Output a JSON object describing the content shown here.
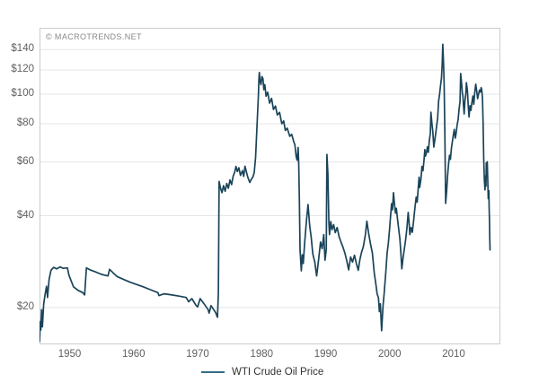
{
  "watermark": "© MACROTRENDS.NET",
  "colors": {
    "background": "#ffffff",
    "axis_label": "#606060",
    "watermark": "#888888",
    "legend_text": "#333333",
    "grid": "#e6e6e6",
    "plot_border": "#cccccc",
    "series_line": "#1a4459",
    "legend_swatch": "#336b87"
  },
  "chart_data": {
    "type": "line",
    "title": "",
    "legend_position": "bottom",
    "grid": {
      "horizontal": true,
      "vertical": false
    },
    "x_axis": {
      "scale": "linear",
      "range": [
        1945.3,
        2017.3
      ],
      "ticks": [
        {
          "v": 1950,
          "label": "1950"
        },
        {
          "v": 1960,
          "label": "1960"
        },
        {
          "v": 1970,
          "label": "1970"
        },
        {
          "v": 1980,
          "label": "1980"
        },
        {
          "v": 1990,
          "label": "1990"
        },
        {
          "v": 2000,
          "label": "2000"
        },
        {
          "v": 2010,
          "label": "2010"
        }
      ]
    },
    "y_axis": {
      "scale": "log",
      "range": [
        15.16,
        165
      ],
      "ticks": [
        {
          "v": 140,
          "label": "$140"
        },
        {
          "v": 120,
          "label": "$120"
        },
        {
          "v": 100,
          "label": "$100"
        },
        {
          "v": 80,
          "label": "$80"
        },
        {
          "v": 60,
          "label": "$60"
        },
        {
          "v": 40,
          "label": "$40"
        },
        {
          "v": 20,
          "label": "$20"
        }
      ]
    },
    "series": [
      {
        "name": "WTI Crude Oil Price",
        "color": "#1a4459",
        "points": [
          [
            1945.3,
            15.5
          ],
          [
            1945.42,
            18.0
          ],
          [
            1945.5,
            16.9
          ],
          [
            1945.62,
            19.7
          ],
          [
            1945.75,
            17.3
          ],
          [
            1945.95,
            20.5
          ],
          [
            1946.15,
            22.0
          ],
          [
            1946.4,
            23.5
          ],
          [
            1946.55,
            21.6
          ],
          [
            1946.8,
            24.8
          ],
          [
            1947.1,
            26.5
          ],
          [
            1947.5,
            27.1
          ],
          [
            1948.0,
            26.8
          ],
          [
            1948.5,
            27.2
          ],
          [
            1949.0,
            26.9
          ],
          [
            1949.65,
            27.0
          ],
          [
            1949.9,
            25.5
          ],
          [
            1950.3,
            24.3
          ],
          [
            1950.6,
            23.4
          ],
          [
            1951.3,
            22.8
          ],
          [
            1952.05,
            22.4
          ],
          [
            1952.35,
            22.0
          ],
          [
            1952.62,
            27.0
          ],
          [
            1953.2,
            26.6
          ],
          [
            1954.0,
            26.2
          ],
          [
            1955.0,
            25.7
          ],
          [
            1956.0,
            25.4
          ],
          [
            1956.25,
            26.7
          ],
          [
            1956.8,
            26.0
          ],
          [
            1957.4,
            25.3
          ],
          [
            1958.5,
            24.7
          ],
          [
            1959.5,
            24.2
          ],
          [
            1960.5,
            23.8
          ],
          [
            1961.5,
            23.4
          ],
          [
            1962.6,
            22.9
          ],
          [
            1963.8,
            22.4
          ],
          [
            1963.95,
            21.9
          ],
          [
            1964.8,
            22.2
          ],
          [
            1966.0,
            22.0
          ],
          [
            1967.2,
            21.8
          ],
          [
            1968.2,
            21.6
          ],
          [
            1968.6,
            20.9
          ],
          [
            1969.1,
            21.4
          ],
          [
            1969.7,
            20.4
          ],
          [
            1970.0,
            20.1
          ],
          [
            1970.4,
            21.4
          ],
          [
            1971.0,
            20.6
          ],
          [
            1971.65,
            19.7
          ],
          [
            1971.8,
            19.2
          ],
          [
            1972.1,
            20.3
          ],
          [
            1972.8,
            19.3
          ],
          [
            1973.1,
            18.6
          ],
          [
            1973.25,
            22.4
          ],
          [
            1973.35,
            51.8
          ],
          [
            1973.55,
            49.4
          ],
          [
            1973.8,
            47.6
          ],
          [
            1974.05,
            50.2
          ],
          [
            1974.3,
            48.1
          ],
          [
            1974.55,
            51.0
          ],
          [
            1974.8,
            49.2
          ],
          [
            1975.05,
            52.4
          ],
          [
            1975.3,
            50.6
          ],
          [
            1975.55,
            53.8
          ],
          [
            1975.8,
            55.6
          ],
          [
            1976.0,
            58.0
          ],
          [
            1976.2,
            55.8
          ],
          [
            1976.45,
            57.4
          ],
          [
            1976.7,
            54.2
          ],
          [
            1977.0,
            56.2
          ],
          [
            1977.2,
            53.8
          ],
          [
            1977.4,
            58.1
          ],
          [
            1977.6,
            55.9
          ],
          [
            1977.85,
            53.4
          ],
          [
            1978.15,
            51.4
          ],
          [
            1978.4,
            52.7
          ],
          [
            1978.65,
            53.6
          ],
          [
            1978.85,
            55.4
          ],
          [
            1979.05,
            62.0
          ],
          [
            1979.2,
            72.0
          ],
          [
            1979.35,
            85.0
          ],
          [
            1979.5,
            100.0
          ],
          [
            1979.58,
            112.0
          ],
          [
            1979.64,
            117.8
          ],
          [
            1979.75,
            110.5
          ],
          [
            1979.9,
            107.5
          ],
          [
            1980.05,
            114.2
          ],
          [
            1980.2,
            112.5
          ],
          [
            1980.35,
            103.5
          ],
          [
            1980.5,
            107.5
          ],
          [
            1980.7,
            98.5
          ],
          [
            1980.95,
            101.5
          ],
          [
            1981.25,
            93.5
          ],
          [
            1981.55,
            96.9
          ],
          [
            1981.85,
            89.1
          ],
          [
            1982.15,
            91.5
          ],
          [
            1982.45,
            85.5
          ],
          [
            1982.8,
            87.2
          ],
          [
            1983.15,
            80.0
          ],
          [
            1983.45,
            81.8
          ],
          [
            1983.7,
            76.1
          ],
          [
            1984.0,
            77.4
          ],
          [
            1984.4,
            72.8
          ],
          [
            1984.7,
            73.9
          ],
          [
            1985.0,
            70.1
          ],
          [
            1985.2,
            68.2
          ],
          [
            1985.4,
            62.4
          ],
          [
            1985.55,
            60.8
          ],
          [
            1985.7,
            66.9
          ],
          [
            1985.8,
            58.0
          ],
          [
            1985.9,
            44.0
          ],
          [
            1986.0,
            31.0
          ],
          [
            1986.2,
            26.4
          ],
          [
            1986.35,
            29.8
          ],
          [
            1986.5,
            27.9
          ],
          [
            1986.7,
            32.2
          ],
          [
            1987.0,
            38.4
          ],
          [
            1987.25,
            43.5
          ],
          [
            1987.5,
            37.2
          ],
          [
            1987.75,
            33.8
          ],
          [
            1988.0,
            30.0
          ],
          [
            1988.3,
            28.2
          ],
          [
            1988.6,
            25.4
          ],
          [
            1988.9,
            28.8
          ],
          [
            1989.2,
            32.8
          ],
          [
            1989.45,
            31.2
          ],
          [
            1989.7,
            34.7
          ],
          [
            1989.9,
            28.6
          ],
          [
            1990.1,
            31.0
          ],
          [
            1990.2,
            63.5
          ],
          [
            1990.35,
            55.0
          ],
          [
            1990.5,
            38.0
          ],
          [
            1990.6,
            34.7
          ],
          [
            1990.8,
            38.3
          ],
          [
            1991.0,
            36.0
          ],
          [
            1991.25,
            37.4
          ],
          [
            1991.5,
            35.2
          ],
          [
            1991.8,
            36.6
          ],
          [
            1992.1,
            34.2
          ],
          [
            1992.4,
            32.8
          ],
          [
            1992.7,
            31.6
          ],
          [
            1993.0,
            30.2
          ],
          [
            1993.3,
            28.5
          ],
          [
            1993.6,
            26.6
          ],
          [
            1993.9,
            29.3
          ],
          [
            1994.2,
            28.2
          ],
          [
            1994.5,
            29.7
          ],
          [
            1994.8,
            27.9
          ],
          [
            1995.1,
            26.5
          ],
          [
            1995.35,
            28.7
          ],
          [
            1995.6,
            30.3
          ],
          [
            1995.9,
            31.7
          ],
          [
            1996.2,
            34.6
          ],
          [
            1996.45,
            38.4
          ],
          [
            1996.7,
            35.2
          ],
          [
            1997.0,
            32.4
          ],
          [
            1997.3,
            30.2
          ],
          [
            1997.6,
            26.0
          ],
          [
            1997.85,
            23.9
          ],
          [
            1998.05,
            22.2
          ],
          [
            1998.25,
            21.5
          ],
          [
            1998.4,
            19.4
          ],
          [
            1998.55,
            20.6
          ],
          [
            1998.75,
            16.8
          ],
          [
            1998.95,
            20.1
          ],
          [
            1999.15,
            22.4
          ],
          [
            1999.4,
            26.2
          ],
          [
            1999.6,
            30.1
          ],
          [
            1999.8,
            32.5
          ],
          [
            2000.0,
            36.3
          ],
          [
            2000.15,
            40.0
          ],
          [
            2000.3,
            43.8
          ],
          [
            2000.45,
            41.8
          ],
          [
            2000.6,
            47.6
          ],
          [
            2000.75,
            43.8
          ],
          [
            2000.9,
            40.8
          ],
          [
            2001.05,
            42.3
          ],
          [
            2001.25,
            38.8
          ],
          [
            2001.45,
            35.6
          ],
          [
            2001.6,
            33.7
          ],
          [
            2001.75,
            30.3
          ],
          [
            2001.9,
            26.8
          ],
          [
            2002.1,
            29.2
          ],
          [
            2002.3,
            31.1
          ],
          [
            2002.5,
            33.5
          ],
          [
            2002.7,
            36.5
          ],
          [
            2002.9,
            41.0
          ],
          [
            2003.05,
            37.6
          ],
          [
            2003.15,
            34.7
          ],
          [
            2003.35,
            36.6
          ],
          [
            2003.55,
            35.3
          ],
          [
            2003.75,
            38.7
          ],
          [
            2003.95,
            42.5
          ],
          [
            2004.15,
            46.0
          ],
          [
            2004.3,
            44.3
          ],
          [
            2004.5,
            50.2
          ],
          [
            2004.6,
            53.5
          ],
          [
            2004.7,
            49.5
          ],
          [
            2004.9,
            53.1
          ],
          [
            2005.05,
            58.0
          ],
          [
            2005.2,
            56.1
          ],
          [
            2005.35,
            60.3
          ],
          [
            2005.5,
            65.8
          ],
          [
            2005.6,
            62.7
          ],
          [
            2005.75,
            64.3
          ],
          [
            2005.9,
            67.2
          ],
          [
            2006.05,
            64.5
          ],
          [
            2006.2,
            70.5
          ],
          [
            2006.35,
            74.1
          ],
          [
            2006.45,
            87.3
          ],
          [
            2006.6,
            80.1
          ],
          [
            2006.75,
            75.3
          ],
          [
            2006.9,
            67.1
          ],
          [
            2007.1,
            71.7
          ],
          [
            2007.3,
            77.5
          ],
          [
            2007.5,
            83.8
          ],
          [
            2007.65,
            94.5
          ],
          [
            2007.8,
            99.7
          ],
          [
            2007.95,
            106.8
          ],
          [
            2008.1,
            112.7
          ],
          [
            2008.2,
            124.5
          ],
          [
            2008.3,
            145.8
          ],
          [
            2008.42,
            127.5
          ],
          [
            2008.52,
            107.9
          ],
          [
            2008.62,
            74.5
          ],
          [
            2008.75,
            43.9
          ],
          [
            2008.9,
            48.3
          ],
          [
            2009.05,
            53.9
          ],
          [
            2009.2,
            59.0
          ],
          [
            2009.35,
            63.1
          ],
          [
            2009.5,
            61.2
          ],
          [
            2009.65,
            66.5
          ],
          [
            2009.8,
            70.1
          ],
          [
            2009.95,
            73.3
          ],
          [
            2010.1,
            76.7
          ],
          [
            2010.25,
            71.8
          ],
          [
            2010.4,
            74.7
          ],
          [
            2010.55,
            79.5
          ],
          [
            2010.7,
            82.6
          ],
          [
            2010.85,
            89.1
          ],
          [
            2011.0,
            94.7
          ],
          [
            2011.1,
            116.9
          ],
          [
            2011.25,
            108.2
          ],
          [
            2011.35,
            101.5
          ],
          [
            2011.45,
            98.6
          ],
          [
            2011.55,
            91.4
          ],
          [
            2011.65,
            86.2
          ],
          [
            2011.75,
            94.8
          ],
          [
            2011.9,
            100.2
          ],
          [
            2012.0,
            109.1
          ],
          [
            2012.15,
            102.7
          ],
          [
            2012.3,
            90.2
          ],
          [
            2012.4,
            84.2
          ],
          [
            2012.55,
            91.7
          ],
          [
            2012.7,
            88.5
          ],
          [
            2012.85,
            93.8
          ],
          [
            2013.0,
            98.6
          ],
          [
            2013.15,
            92.7
          ],
          [
            2013.3,
            101.5
          ],
          [
            2013.45,
            107.8
          ],
          [
            2013.6,
            102.6
          ],
          [
            2013.75,
            96.7
          ],
          [
            2013.9,
            100.3
          ],
          [
            2014.05,
            103.1
          ],
          [
            2014.2,
            101.7
          ],
          [
            2014.3,
            105.1
          ],
          [
            2014.4,
            103.3
          ],
          [
            2014.5,
            96.7
          ],
          [
            2014.6,
            80.0
          ],
          [
            2014.7,
            61.0
          ],
          [
            2014.8,
            52.3
          ],
          [
            2014.9,
            48.6
          ],
          [
            2015.0,
            54.0
          ],
          [
            2015.05,
            50.0
          ],
          [
            2015.1,
            59.6
          ],
          [
            2015.2,
            56.6
          ],
          [
            2015.25,
            60.1
          ],
          [
            2015.35,
            50.6
          ],
          [
            2015.4,
            45.5
          ],
          [
            2015.5,
            48.3
          ],
          [
            2015.55,
            42.4
          ],
          [
            2015.6,
            38.2
          ],
          [
            2015.63,
            34.6
          ],
          [
            2015.68,
            30.9
          ]
        ]
      }
    ]
  }
}
